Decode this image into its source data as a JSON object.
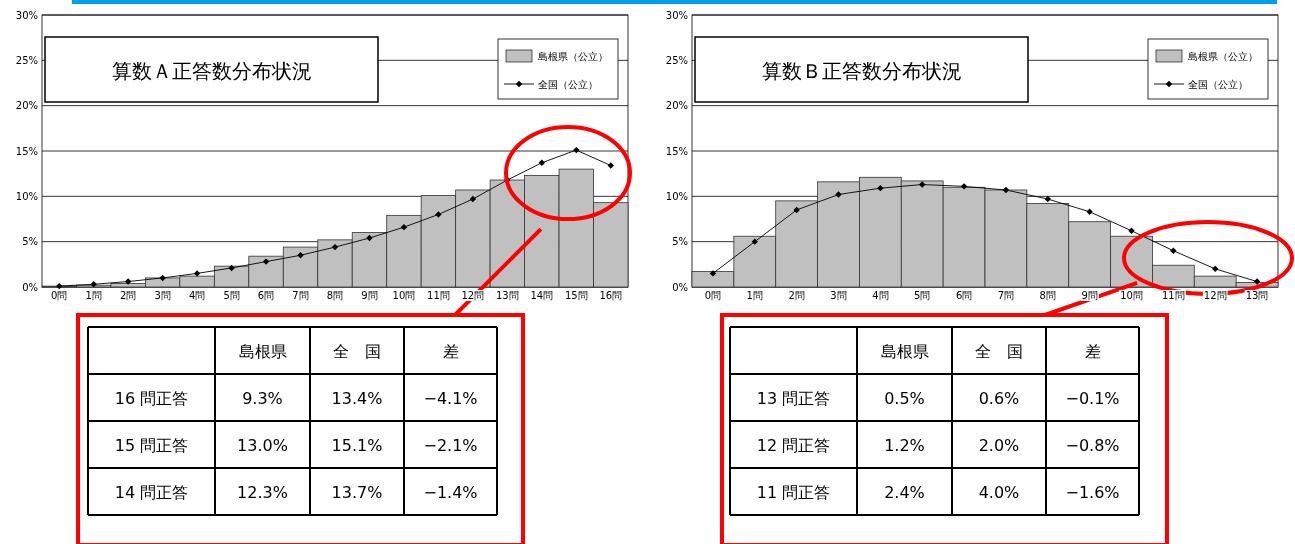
{
  "chart_data": [
    {
      "type": "bar",
      "title": "算数Ａ正答数分布状況",
      "categories": [
        "0問",
        "1問",
        "2問",
        "3問",
        "4問",
        "5問",
        "6問",
        "7問",
        "8問",
        "9問",
        "10問",
        "11問",
        "12問",
        "13問",
        "14問",
        "15問",
        "16問"
      ],
      "series": [
        {
          "name": "島根県（公立）",
          "color": "#c0c0c0",
          "values": [
            0.1,
            0.2,
            0.4,
            1.0,
            1.2,
            2.3,
            3.4,
            4.4,
            5.2,
            6.0,
            7.9,
            10.1,
            10.7,
            11.8,
            12.3,
            13.0,
            9.3
          ]
        },
        {
          "name": "全国（公立）",
          "type": "line",
          "color": "#000000",
          "marker": "diamond",
          "values": [
            0.1,
            0.3,
            0.6,
            1.0,
            1.5,
            2.1,
            2.8,
            3.5,
            4.4,
            5.4,
            6.6,
            8.0,
            9.7,
            11.8,
            13.7,
            15.1,
            13.4
          ]
        }
      ],
      "ylim": [
        0,
        30
      ],
      "yticks": [
        {
          "value": 0,
          "label": "0%"
        },
        {
          "value": 5,
          "label": "5%"
        },
        {
          "value": 10,
          "label": "10%"
        },
        {
          "value": 15,
          "label": "15%"
        },
        {
          "value": 20,
          "label": "20%"
        },
        {
          "value": 25,
          "label": "25%"
        },
        {
          "value": 30,
          "label": "30%"
        }
      ],
      "grid": "y",
      "legend": "top right",
      "annotations": [
        "島根県",
        "全　国",
        "差",
        "16 問正答",
        "9.3%",
        "13.4%",
        "−4.1%",
        "15 問正答",
        "13.0%",
        "15.1%",
        "−2.1%",
        "14 問正答",
        "12.3%",
        "13.7%",
        "−1.4%"
      ]
    },
    {
      "type": "bar",
      "title": "算数Ｂ正答数分布状況",
      "categories": [
        "0問",
        "1問",
        "2問",
        "3問",
        "4問",
        "5問",
        "6問",
        "7問",
        "8問",
        "9問",
        "10問",
        "11問",
        "12問",
        "13問"
      ],
      "series": [
        {
          "name": "島根県（公立）",
          "color": "#c0c0c0",
          "values": [
            1.7,
            5.6,
            9.5,
            11.6,
            12.1,
            11.7,
            11.0,
            10.7,
            9.2,
            7.2,
            5.6,
            2.4,
            1.2,
            0.5
          ]
        },
        {
          "name": "全国（公立）",
          "type": "line",
          "color": "#000000",
          "marker": "diamond",
          "values": [
            1.5,
            5.0,
            8.5,
            10.2,
            10.9,
            11.3,
            11.1,
            10.7,
            9.7,
            8.3,
            6.2,
            4.0,
            2.0,
            0.6
          ]
        }
      ],
      "ylim": [
        0,
        30
      ],
      "yticks": [
        {
          "value": 0,
          "label": "0%"
        },
        {
          "value": 5,
          "label": "5%"
        },
        {
          "value": 10,
          "label": "10%"
        },
        {
          "value": 15,
          "label": "15%"
        },
        {
          "value": 20,
          "label": "20%"
        },
        {
          "value": 25,
          "label": "25%"
        },
        {
          "value": 30,
          "label": "30%"
        }
      ],
      "grid": "y",
      "legend": "top right",
      "annotations": [
        "島根県",
        "全　国",
        "差",
        "13 問正答",
        "0.5%",
        "0.6%",
        "−0.1%",
        "12 問正答",
        "1.2%",
        "2.0%",
        "−0.8%",
        "11 問正答",
        "2.4%",
        "4.0%",
        "−1.6%"
      ]
    }
  ]
}
